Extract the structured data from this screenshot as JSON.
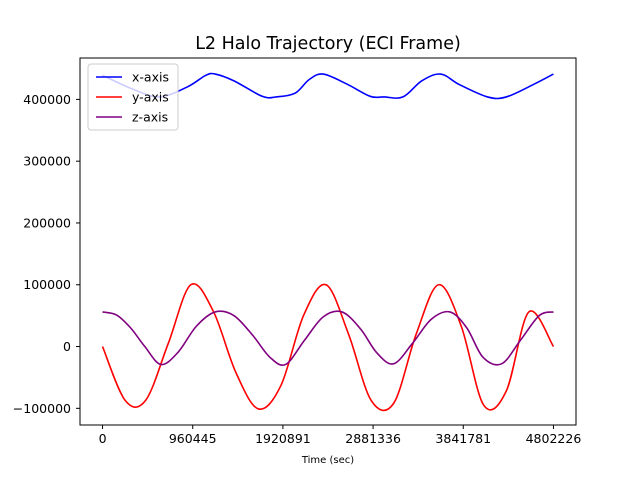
{
  "chart_data": {
    "type": "line",
    "title": "L2 Halo Trajectory (ECI Frame)",
    "xlabel": "Time (sec)",
    "ylabel": "",
    "xlim": [
      -240111,
      5042337
    ],
    "ylim": [
      -127000,
      467000
    ],
    "x_ticks": [
      0,
      960445,
      1920891,
      2881336,
      3841781,
      4802226
    ],
    "x_tick_labels": [
      "0",
      "960445",
      "1920891",
      "2881336",
      "3841781",
      "4802226"
    ],
    "y_ticks": [
      -100000,
      0,
      100000,
      200000,
      300000,
      400000
    ],
    "y_tick_labels": [
      "−100000",
      "0",
      "100000",
      "200000",
      "300000",
      "400000"
    ],
    "legend_position": "upper-left",
    "series": [
      {
        "name": "x-axis",
        "color": "#0000ff",
        "x": [
          0,
          300000,
          600000,
          900000,
          1100000,
          1200000,
          1400000,
          1700000,
          1850000,
          2050000,
          2200000,
          2350000,
          2600000,
          2850000,
          3000000,
          3200000,
          3400000,
          3600000,
          3800000,
          4100000,
          4300000,
          4600000,
          4802226
        ],
        "values": [
          439000,
          418000,
          404000,
          420000,
          439000,
          441000,
          430000,
          405000,
          404000,
          410000,
          432000,
          441000,
          425000,
          405000,
          404000,
          404000,
          430000,
          441000,
          424000,
          404000,
          404000,
          425000,
          441000
        ]
      },
      {
        "name": "y-axis",
        "color": "#ff0000",
        "x": [
          0,
          240000,
          460000,
          700000,
          940000,
          1180000,
          1420000,
          1660000,
          1900000,
          2140000,
          2380000,
          2620000,
          2860000,
          3100000,
          3340000,
          3580000,
          3820000,
          4060000,
          4300000,
          4540000,
          4802226
        ],
        "values": [
          0,
          -87000,
          -87000,
          5000,
          100000,
          57000,
          -42000,
          -101000,
          -63000,
          50000,
          100000,
          20000,
          -87000,
          -92000,
          20000,
          100000,
          33000,
          -95000,
          -72000,
          56000,
          0
        ]
      },
      {
        "name": "z-axis",
        "color": "#800080",
        "x": [
          0,
          150000,
          300000,
          450000,
          620000,
          800000,
          1000000,
          1200000,
          1400000,
          1600000,
          1780000,
          1950000,
          2150000,
          2350000,
          2550000,
          2750000,
          2920000,
          3100000,
          3300000,
          3500000,
          3700000,
          3880000,
          4050000,
          4250000,
          4450000,
          4650000,
          4802226
        ],
        "values": [
          56000,
          51000,
          30000,
          0,
          -29000,
          -10000,
          33000,
          56000,
          50000,
          18000,
          -17000,
          -29000,
          10000,
          48000,
          56000,
          28000,
          -10000,
          -28000,
          5000,
          44000,
          56000,
          30000,
          -17000,
          -28000,
          10000,
          50000,
          56000
        ]
      }
    ]
  }
}
